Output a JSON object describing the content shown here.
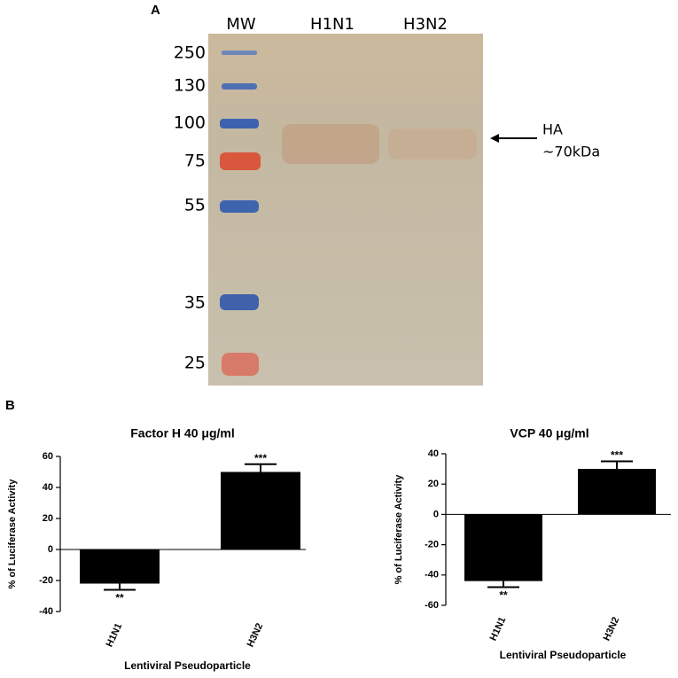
{
  "panel_a": {
    "label": "A",
    "lanes": [
      "MW",
      "H1N1",
      "H3N2"
    ],
    "markers": [
      250,
      130,
      100,
      75,
      55,
      35,
      25
    ],
    "annotation": [
      "HA",
      "~70kDa"
    ]
  },
  "panel_b": {
    "label": "B"
  },
  "chart_data": [
    {
      "type": "bar",
      "title": "Factor H 40 μg/ml",
      "y_label": "% of Luciferase Activity",
      "x_label": "Lentiviral Pseudoparticle",
      "categories": [
        "H1N1",
        "H3N2"
      ],
      "values": [
        -22,
        50
      ],
      "errors": [
        4,
        5
      ],
      "annotations": [
        "**",
        "***"
      ],
      "color": "#000000",
      "ylim": [
        -40,
        60
      ],
      "yticks": [
        -40,
        -20,
        0,
        20,
        40,
        60
      ]
    },
    {
      "type": "bar",
      "title": "VCP 40 μg/ml",
      "y_label": "% of Luciferase Activity",
      "x_label": "Lentiviral Pseudoparticle",
      "categories": [
        "H1N1",
        "H3N2"
      ],
      "values": [
        -44,
        30
      ],
      "errors": [
        4,
        5
      ],
      "annotations": [
        "**",
        "***"
      ],
      "color": "#000000",
      "ylim": [
        -60,
        40
      ],
      "yticks": [
        -60,
        -40,
        -20,
        0,
        20,
        40
      ]
    }
  ]
}
